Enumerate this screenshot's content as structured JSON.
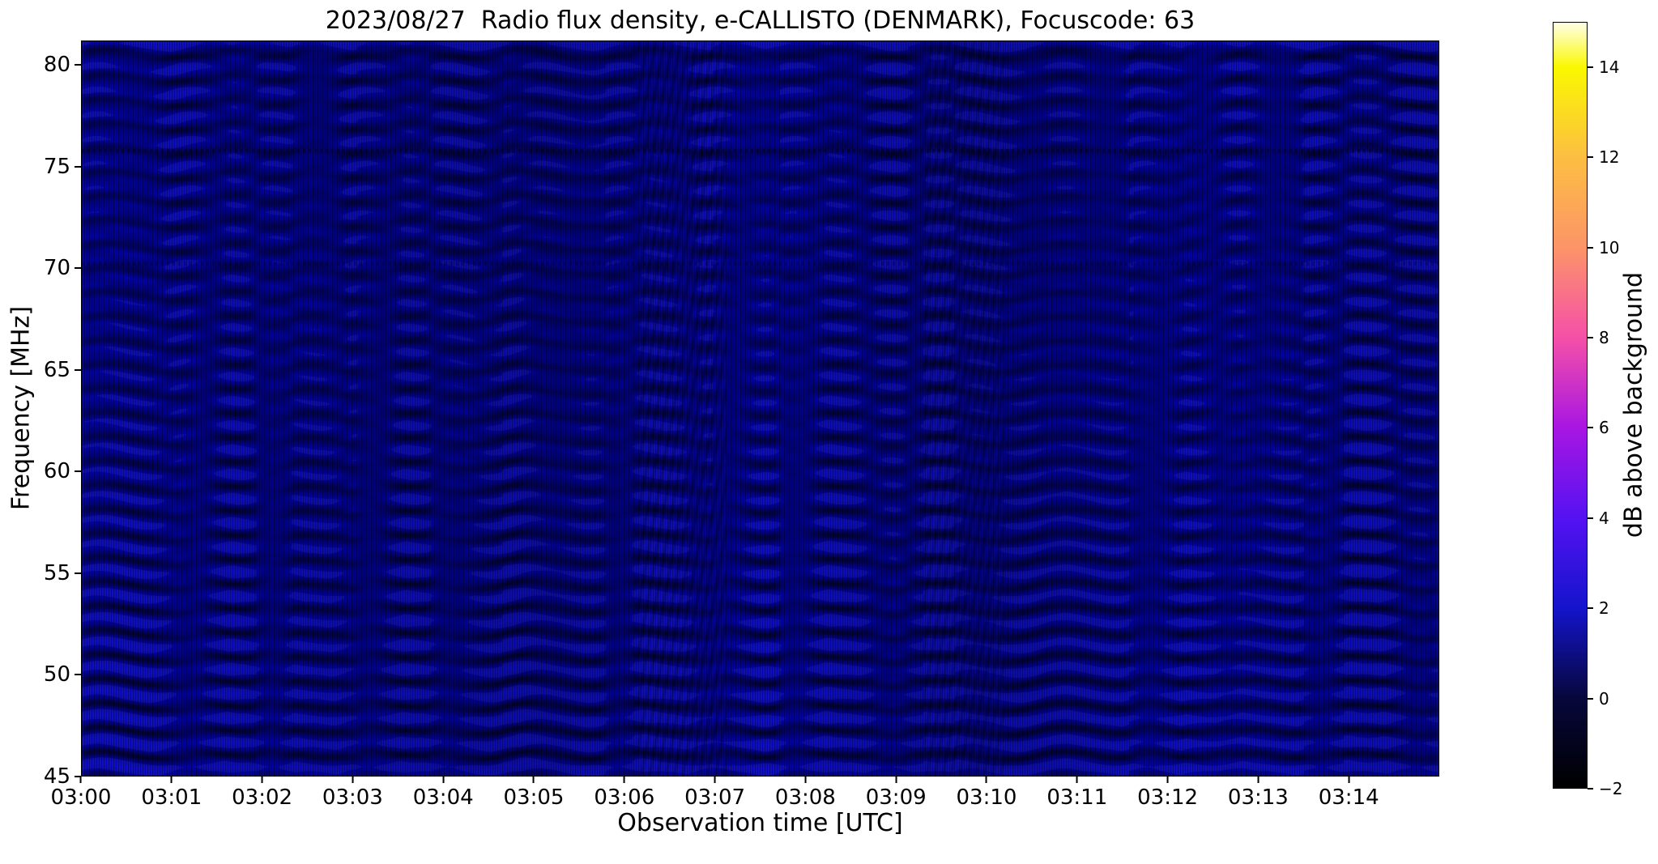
{
  "figure": {
    "title": "2023/08/27  Radio flux density, e-CALLISTO (DENMARK), Focuscode: 63"
  },
  "chart_data": {
    "type": "heatmap",
    "title": "2023/08/27  Radio flux density, e-CALLISTO (DENMARK), Focuscode: 63",
    "xlabel": "Observation time [UTC]",
    "ylabel": "Frequency [MHz]",
    "x_start_time": "03:00",
    "x_range_minutes": [
      0,
      15
    ],
    "x_ticks": [
      {
        "label": "03:00",
        "minute": 0
      },
      {
        "label": "03:01",
        "minute": 1
      },
      {
        "label": "03:02",
        "minute": 2
      },
      {
        "label": "03:03",
        "minute": 3
      },
      {
        "label": "03:04",
        "minute": 4
      },
      {
        "label": "03:05",
        "minute": 5
      },
      {
        "label": "03:06",
        "minute": 6
      },
      {
        "label": "03:07",
        "minute": 7
      },
      {
        "label": "03:08",
        "minute": 8
      },
      {
        "label": "03:09",
        "minute": 9
      },
      {
        "label": "03:10",
        "minute": 10
      },
      {
        "label": "03:11",
        "minute": 11
      },
      {
        "label": "03:12",
        "minute": 12
      },
      {
        "label": "03:13",
        "minute": 13
      },
      {
        "label": "03:14",
        "minute": 14
      }
    ],
    "y_range": [
      45,
      81.2
    ],
    "y_ticks": [
      45,
      50,
      55,
      60,
      65,
      70,
      75,
      80
    ],
    "grid": false,
    "colorbar": {
      "label": "dB above background",
      "range": [
        -2,
        15
      ],
      "ticks": [
        -2,
        0,
        2,
        4,
        6,
        8,
        10,
        12,
        14
      ],
      "colormap_stops": [
        {
          "value": -2,
          "color": "#000000"
        },
        {
          "value": 0,
          "color": "#07073c"
        },
        {
          "value": 2,
          "color": "#1414cc"
        },
        {
          "value": 4,
          "color": "#5512f2"
        },
        {
          "value": 6,
          "color": "#a816e2"
        },
        {
          "value": 8,
          "color": "#f550a8"
        },
        {
          "value": 10,
          "color": "#fc9468"
        },
        {
          "value": 12,
          "color": "#fcbe42"
        },
        {
          "value": 14,
          "color": "#faf800"
        },
        {
          "value": 15,
          "color": "#ffffe8"
        }
      ]
    },
    "heatmap_appearance": {
      "base_color": "#0909c2",
      "fringe_color": "#000016",
      "content_note": "Quiet dark-blue spectrogram (approx -1 to 3 dB) covered by wavy horizontal interference fringes; fringes steepen near 03:06:30 and 03:09:30; faint horizontal RFI rows near 75.8 MHz and 70.3 MHz; no solar burst visible"
    }
  }
}
